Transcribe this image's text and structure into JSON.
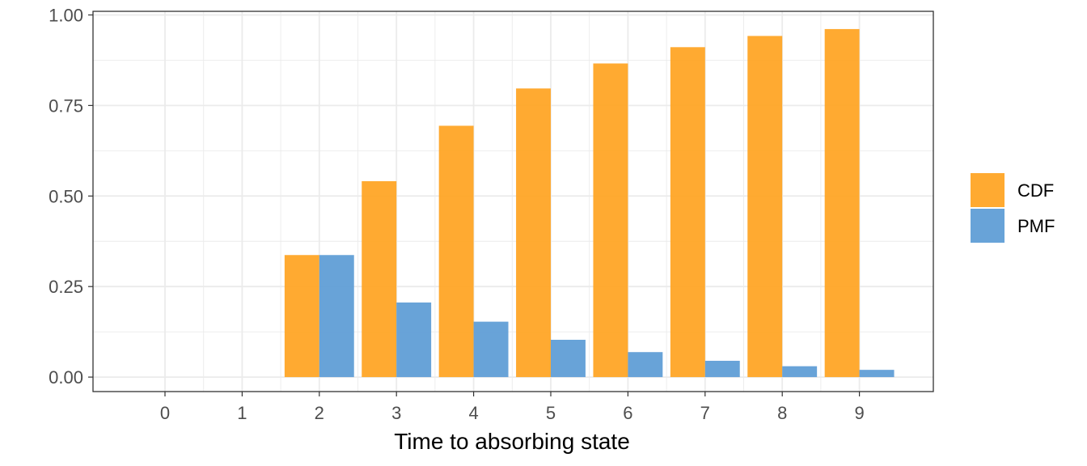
{
  "chart_data": {
    "type": "bar",
    "categories": [
      "0",
      "1",
      "2",
      "3",
      "4",
      "5",
      "6",
      "7",
      "8",
      "9"
    ],
    "series": [
      {
        "name": "CDF",
        "color": "#FFA31F",
        "values": [
          0,
          0,
          0.337,
          0.541,
          0.694,
          0.797,
          0.866,
          0.911,
          0.942,
          0.961
        ]
      },
      {
        "name": "PMF",
        "color": "#5B9BD5",
        "values": [
          0,
          0,
          0.337,
          0.206,
          0.153,
          0.103,
          0.069,
          0.045,
          0.03,
          0.02
        ]
      }
    ],
    "xlabel": "Time to absorbing state",
    "ylabel": "",
    "ylim": [
      -0.04,
      1.01
    ],
    "yticks": [
      0,
      0.25,
      0.5,
      0.75,
      1.0
    ],
    "ytick_labels": [
      "0.00",
      "0.25",
      "0.50",
      "0.75",
      "1.00"
    ],
    "grid": true,
    "legend_position": "right"
  }
}
